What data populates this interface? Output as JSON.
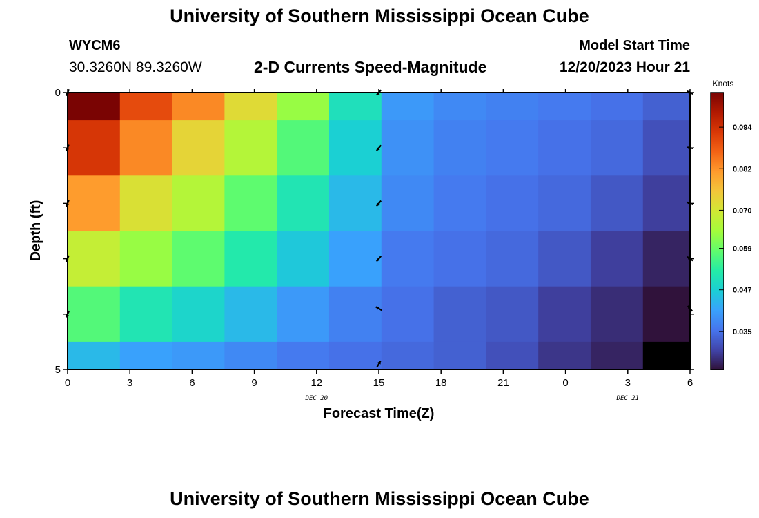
{
  "header": {
    "title": "University of Southern Mississippi Ocean Cube",
    "station_id": "WYCM6",
    "station_coords": "30.3260N  89.3260W",
    "plot_title": "2-D Currents Speed-Magnitude",
    "model_label": "Model Start Time",
    "model_time": "12/20/2023 Hour 21"
  },
  "footer": {
    "title": "University of Southern Mississippi Ocean Cube"
  },
  "chart_data": {
    "type": "heatmap",
    "xlabel": "Forecast Time(Z)",
    "ylabel": "Depth (ft)",
    "x_tick_labels": [
      "0",
      "3",
      "6",
      "9",
      "12",
      "15",
      "18",
      "21",
      "0",
      "3",
      "6"
    ],
    "x_date_labels": [
      {
        "text": "DEC 20",
        "at_hour": 12
      },
      {
        "text": "DEC 21",
        "at_hour": 27
      }
    ],
    "x_range_hours": [
      0,
      30
    ],
    "y_tick_labels": [
      "0",
      "5"
    ],
    "y_range": [
      0,
      5
    ],
    "colorbar": {
      "title": "Knots",
      "tick_labels": [
        "0.094",
        "0.082",
        "0.070",
        "0.059",
        "0.047",
        "0.035"
      ],
      "range": [
        0.024,
        0.104
      ],
      "colors": [
        "#30123b",
        "#4145ab",
        "#4675ed",
        "#39a2fc",
        "#1bcfd4",
        "#24eca6",
        "#61fc6c",
        "#a4fc3b",
        "#d1e834",
        "#f3c63a",
        "#fe9b2d",
        "#f36315",
        "#d93806",
        "#b11901",
        "#7a0403"
      ]
    },
    "rows": 5,
    "cols": 12,
    "speed_knots": [
      [
        0.104,
        0.09,
        0.083,
        0.072,
        0.063,
        0.05,
        0.04,
        0.038,
        0.037,
        0.036,
        0.035,
        0.033
      ],
      [
        0.093,
        0.083,
        0.073,
        0.066,
        0.057,
        0.047,
        0.039,
        0.037,
        0.036,
        0.035,
        0.034,
        0.031
      ],
      [
        0.081,
        0.071,
        0.066,
        0.058,
        0.051,
        0.044,
        0.038,
        0.036,
        0.035,
        0.034,
        0.032,
        0.029
      ],
      [
        0.068,
        0.063,
        0.058,
        0.052,
        0.046,
        0.041,
        0.036,
        0.035,
        0.034,
        0.032,
        0.029,
        0.026
      ],
      [
        0.057,
        0.051,
        0.048,
        0.044,
        0.04,
        0.037,
        0.035,
        0.033,
        0.032,
        0.029,
        0.027,
        0.024
      ]
    ],
    "bottom_row_knots": [
      0.044,
      0.041,
      0.04,
      0.038,
      0.036,
      0.035,
      0.034,
      0.033,
      0.031,
      0.028,
      0.026,
      0.023
    ],
    "bottom_row_final_cell_color": "#000000",
    "vectors": [
      {
        "hour": 0,
        "depth": 0.0,
        "angle": 115
      },
      {
        "hour": 0,
        "depth": 1.0,
        "angle": 110
      },
      {
        "hour": 0,
        "depth": 2.0,
        "angle": 110
      },
      {
        "hour": 0,
        "depth": 3.0,
        "angle": 110
      },
      {
        "hour": 0,
        "depth": 4.0,
        "angle": 115
      },
      {
        "hour": 15,
        "depth": 0.0,
        "angle": 130
      },
      {
        "hour": 15,
        "depth": 1.0,
        "angle": 130
      },
      {
        "hour": 15,
        "depth": 2.0,
        "angle": 130
      },
      {
        "hour": 15,
        "depth": 3.0,
        "angle": 130
      },
      {
        "hour": 15,
        "depth": 3.9,
        "angle": 210
      },
      {
        "hour": 15,
        "depth": 4.9,
        "angle": 300
      },
      {
        "hour": 30,
        "depth": 0.0,
        "angle": 205
      },
      {
        "hour": 30,
        "depth": 1.0,
        "angle": 190
      },
      {
        "hour": 30,
        "depth": 2.0,
        "angle": 200
      },
      {
        "hour": 30,
        "depth": 3.0,
        "angle": 215
      },
      {
        "hour": 30,
        "depth": 3.9,
        "angle": 230
      }
    ]
  }
}
